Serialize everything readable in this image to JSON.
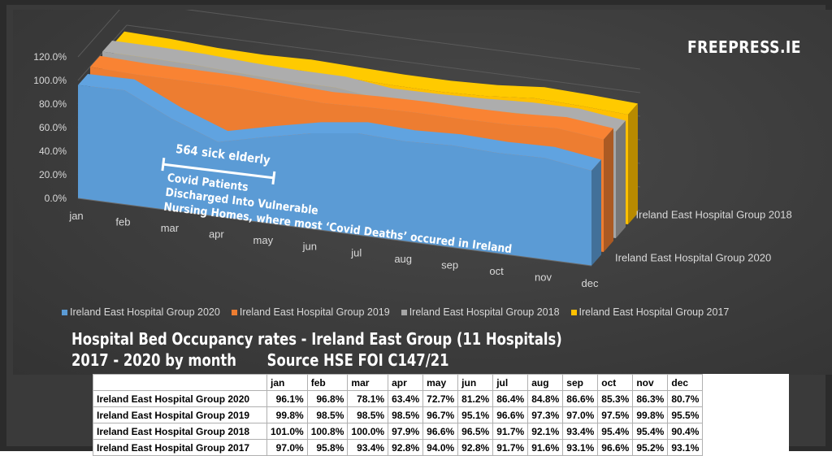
{
  "brand": "FREEPRESS.IE",
  "title_line1": "Hospital Bed Occupancy rates - Ireland East Group (11 Hospitals)",
  "title_line2_a": "2017 - 2020 by month",
  "title_line2_b": "Source HSE FOI C147/21",
  "annotation": {
    "count_label": "564 sick elderly",
    "line1": "Covid Patients",
    "line2": "Discharged Into Vulnerable",
    "line3": "Nursing Homes, where most ‘Covid Deaths’ occured in Ireland"
  },
  "depth_labels": [
    "Ireland East Hospital Group 2018",
    "Ireland East Hospital Group 2020"
  ],
  "colors": {
    "2020": "#5b9bd5",
    "2019": "#ed7d31",
    "2018": "#a5a5a5",
    "2017": "#ffc000"
  },
  "chart_data": {
    "type": "area",
    "subtype": "3d-area",
    "x": [
      "jan",
      "feb",
      "mar",
      "apr",
      "may",
      "jun",
      "jul",
      "aug",
      "sep",
      "oct",
      "nov",
      "dec"
    ],
    "y_ticks": [
      "0.0%",
      "20.0%",
      "40.0%",
      "60.0%",
      "80.0%",
      "100.0%",
      "120.0%"
    ],
    "ylim": [
      0,
      120
    ],
    "series": [
      {
        "name": "Ireland East Hospital Group 2020",
        "values": [
          96.1,
          96.8,
          78.1,
          63.4,
          72.7,
          81.2,
          86.4,
          84.8,
          86.6,
          85.3,
          86.3,
          80.7
        ]
      },
      {
        "name": "Ireland East Hospital Group 2019",
        "values": [
          99.8,
          98.5,
          98.5,
          98.5,
          96.7,
          95.1,
          96.6,
          97.3,
          97.0,
          97.5,
          99.8,
          95.5
        ]
      },
      {
        "name": "Ireland East Hospital Group 2018",
        "values": [
          101.0,
          100.8,
          100.0,
          97.9,
          96.6,
          96.5,
          91.7,
          92.1,
          93.4,
          95.4,
          95.4,
          90.4
        ]
      },
      {
        "name": "Ireland East Hospital Group 2017",
        "values": [
          97.0,
          95.8,
          93.4,
          92.8,
          94.0,
          92.8,
          91.7,
          91.6,
          93.1,
          96.6,
          95.2,
          93.1
        ]
      }
    ],
    "legend_position": "bottom"
  },
  "table": {
    "headers": [
      "",
      "jan",
      "feb",
      "mar",
      "apr",
      "may",
      "jun",
      "jul",
      "aug",
      "sep",
      "oct",
      "nov",
      "dec"
    ],
    "rows": [
      [
        "Ireland East Hospital Group 2020",
        "96.1%",
        "96.8%",
        "78.1%",
        "63.4%",
        "72.7%",
        "81.2%",
        "86.4%",
        "84.8%",
        "86.6%",
        "85.3%",
        "86.3%",
        "80.7%"
      ],
      [
        "Ireland East Hospital Group 2019",
        "99.8%",
        "98.5%",
        "98.5%",
        "98.5%",
        "96.7%",
        "95.1%",
        "96.6%",
        "97.3%",
        "97.0%",
        "97.5%",
        "99.8%",
        "95.5%"
      ],
      [
        "Ireland East Hospital Group 2018",
        "101.0%",
        "100.8%",
        "100.0%",
        "97.9%",
        "96.6%",
        "96.5%",
        "91.7%",
        "92.1%",
        "93.4%",
        "95.4%",
        "95.4%",
        "90.4%"
      ],
      [
        "Ireland East Hospital Group 2017",
        "97.0%",
        "95.8%",
        "93.4%",
        "92.8%",
        "94.0%",
        "92.8%",
        "91.7%",
        "91.6%",
        "93.1%",
        "96.6%",
        "95.2%",
        "93.1%"
      ]
    ]
  }
}
